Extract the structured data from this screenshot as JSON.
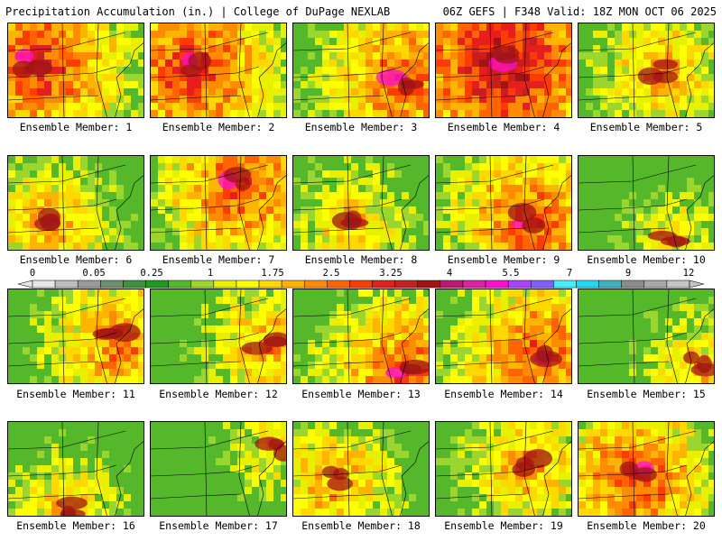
{
  "header": {
    "title_left": "Precipitation Accumulation (in.) | College of DuPage NEXLAB",
    "title_right": "06Z GEFS | F348 Valid: 18Z MON OCT 06 2025"
  },
  "members": [
    {
      "label": "Ensemble Member: 1"
    },
    {
      "label": "Ensemble Member: 2"
    },
    {
      "label": "Ensemble Member: 3"
    },
    {
      "label": "Ensemble Member: 4"
    },
    {
      "label": "Ensemble Member: 5"
    },
    {
      "label": "Ensemble Member: 6"
    },
    {
      "label": "Ensemble Member: 7"
    },
    {
      "label": "Ensemble Member: 8"
    },
    {
      "label": "Ensemble Member: 9"
    },
    {
      "label": "Ensemble Member: 10"
    },
    {
      "label": "Ensemble Member: 11"
    },
    {
      "label": "Ensemble Member: 12"
    },
    {
      "label": "Ensemble Member: 13"
    },
    {
      "label": "Ensemble Member: 14"
    },
    {
      "label": "Ensemble Member: 15"
    },
    {
      "label": "Ensemble Member: 16"
    },
    {
      "label": "Ensemble Member: 17"
    },
    {
      "label": "Ensemble Member: 18"
    },
    {
      "label": "Ensemble Member: 19"
    },
    {
      "label": "Ensemble Member: 20"
    }
  ],
  "colorbar": {
    "labels": [
      "0",
      "0.05",
      "0.25",
      "1",
      "1.75",
      "2.5",
      "3.25",
      "4",
      "5.5",
      "7",
      "9",
      "12"
    ],
    "colors": [
      "#e6e6e6",
      "#bdbdbd",
      "#9a9a9a",
      "#6f8f6f",
      "#3f8f3f",
      "#1f9a1f",
      "#55b82a",
      "#9ad62e",
      "#e8f000",
      "#ffff00",
      "#ffd800",
      "#ffb400",
      "#ff8c00",
      "#ff6400",
      "#ff3c00",
      "#e61e1e",
      "#c81e1e",
      "#a01414",
      "#c0186e",
      "#e020a0",
      "#ff10d0",
      "#b040ff",
      "#8060ff",
      "#40f0ff",
      "#20d8f0",
      "#40b0c0",
      "#8c8c8c",
      "#a8a8a8",
      "#c4c4c4"
    ]
  }
}
